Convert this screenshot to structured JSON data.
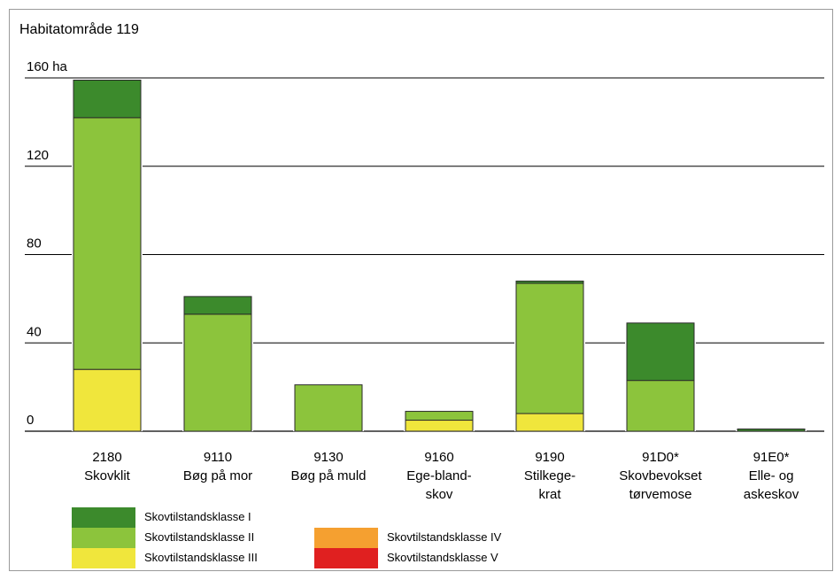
{
  "chart_data": {
    "type": "bar",
    "stacked": true,
    "title": "Habitatområde 119",
    "y_unit_label": "160 ha",
    "ylim": [
      0,
      160
    ],
    "y_ticks": [
      {
        "value": 0,
        "label": "0"
      },
      {
        "value": 40,
        "label": "40"
      },
      {
        "value": 80,
        "label": "80"
      },
      {
        "value": 120,
        "label": "120"
      },
      {
        "value": 160,
        "label": "160 ha"
      }
    ],
    "grid": true,
    "legend_position": "bottom",
    "categories": [
      {
        "code": "2180",
        "lines": [
          "Skovklit"
        ]
      },
      {
        "code": "9110",
        "lines": [
          "Bøg på mor"
        ]
      },
      {
        "code": "9130",
        "lines": [
          "Bøg på muld"
        ]
      },
      {
        "code": "9160",
        "lines": [
          "Ege-bland-",
          "skov"
        ]
      },
      {
        "code": "9190",
        "lines": [
          "Stilkege-",
          "krat"
        ]
      },
      {
        "code": "91D0*",
        "lines": [
          "Skovbevokset",
          "tørvemose"
        ]
      },
      {
        "code": "91E0*",
        "lines": [
          "Elle- og",
          "askeskov"
        ]
      }
    ],
    "series": [
      {
        "name": "Skovtilstandsklasse III",
        "color": "#f0e63c",
        "values": [
          28,
          0,
          0,
          5,
          8,
          0,
          0
        ]
      },
      {
        "name": "Skovtilstandsklasse II",
        "color": "#8cc43c",
        "values": [
          114,
          53,
          21,
          4,
          59,
          23,
          0
        ]
      },
      {
        "name": "Skovtilstandsklasse I",
        "color": "#3c8a2c",
        "values": [
          17,
          8,
          0,
          0,
          1,
          26,
          1
        ]
      },
      {
        "name": "Skovtilstandsklasse IV",
        "color": "#f5a030",
        "values": [
          0,
          0,
          0,
          0,
          0,
          0,
          0
        ]
      },
      {
        "name": "Skovtilstandsklasse V",
        "color": "#e02020",
        "values": [
          0,
          0,
          0,
          0,
          0,
          0,
          0
        ]
      }
    ]
  }
}
